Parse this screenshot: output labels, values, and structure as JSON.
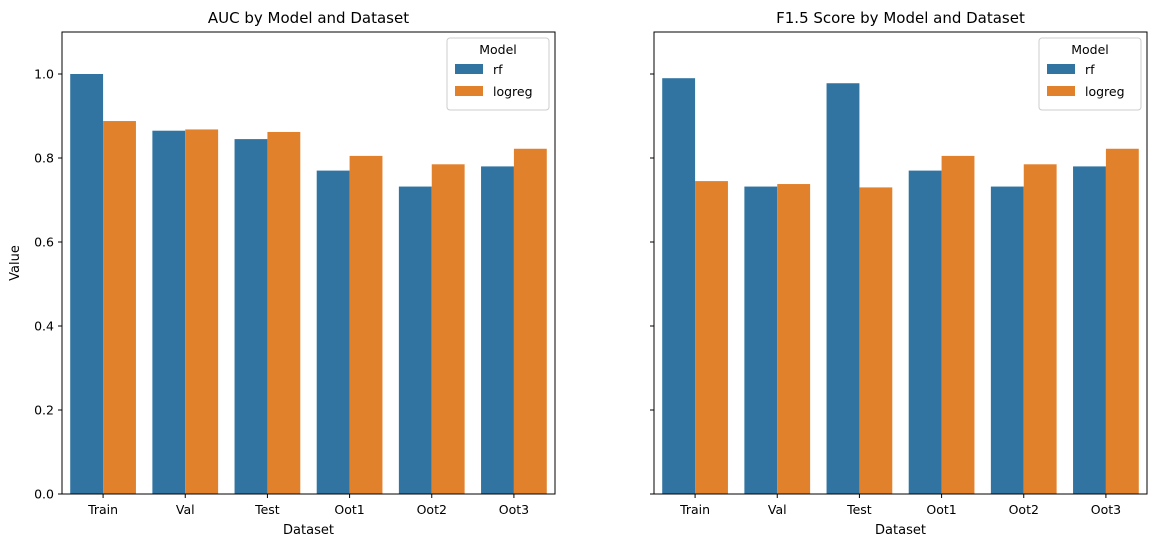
{
  "chart_data": [
    {
      "type": "bar",
      "title": "AUC by Model and Dataset",
      "xlabel": "Dataset",
      "ylabel": "Value",
      "categories": [
        "Train",
        "Val",
        "Test",
        "Oot1",
        "Oot2",
        "Oot3"
      ],
      "series": [
        {
          "name": "rf",
          "color": "#3274a1",
          "values": [
            1.0,
            0.865,
            0.845,
            0.77,
            0.732,
            0.78
          ]
        },
        {
          "name": "logreg",
          "color": "#e1812c",
          "values": [
            0.888,
            0.868,
            0.862,
            0.805,
            0.785,
            0.822
          ]
        }
      ],
      "ylim": [
        0,
        1.1
      ],
      "yticks": [
        "0.0",
        "0.2",
        "0.4",
        "0.6",
        "0.8",
        "1.0"
      ],
      "legend": {
        "title": "Model",
        "placement": "top-right"
      },
      "grid": false
    },
    {
      "type": "bar",
      "title": "F1.5 Score by Model and Dataset",
      "xlabel": "Dataset",
      "ylabel": "",
      "categories": [
        "Train",
        "Val",
        "Test",
        "Oot1",
        "Oot2",
        "Oot3"
      ],
      "series": [
        {
          "name": "rf",
          "color": "#3274a1",
          "values": [
            0.99,
            0.732,
            0.978,
            0.77,
            0.732,
            0.78
          ]
        },
        {
          "name": "logreg",
          "color": "#e1812c",
          "values": [
            0.745,
            0.738,
            0.73,
            0.805,
            0.785,
            0.822
          ]
        }
      ],
      "ylim": [
        0,
        1.1
      ],
      "yticks": [
        "0.0",
        "0.2",
        "0.4",
        "0.6",
        "0.8",
        "1.0"
      ],
      "shared_y": true,
      "legend": {
        "title": "Model",
        "placement": "top-right"
      },
      "grid": false
    }
  ]
}
